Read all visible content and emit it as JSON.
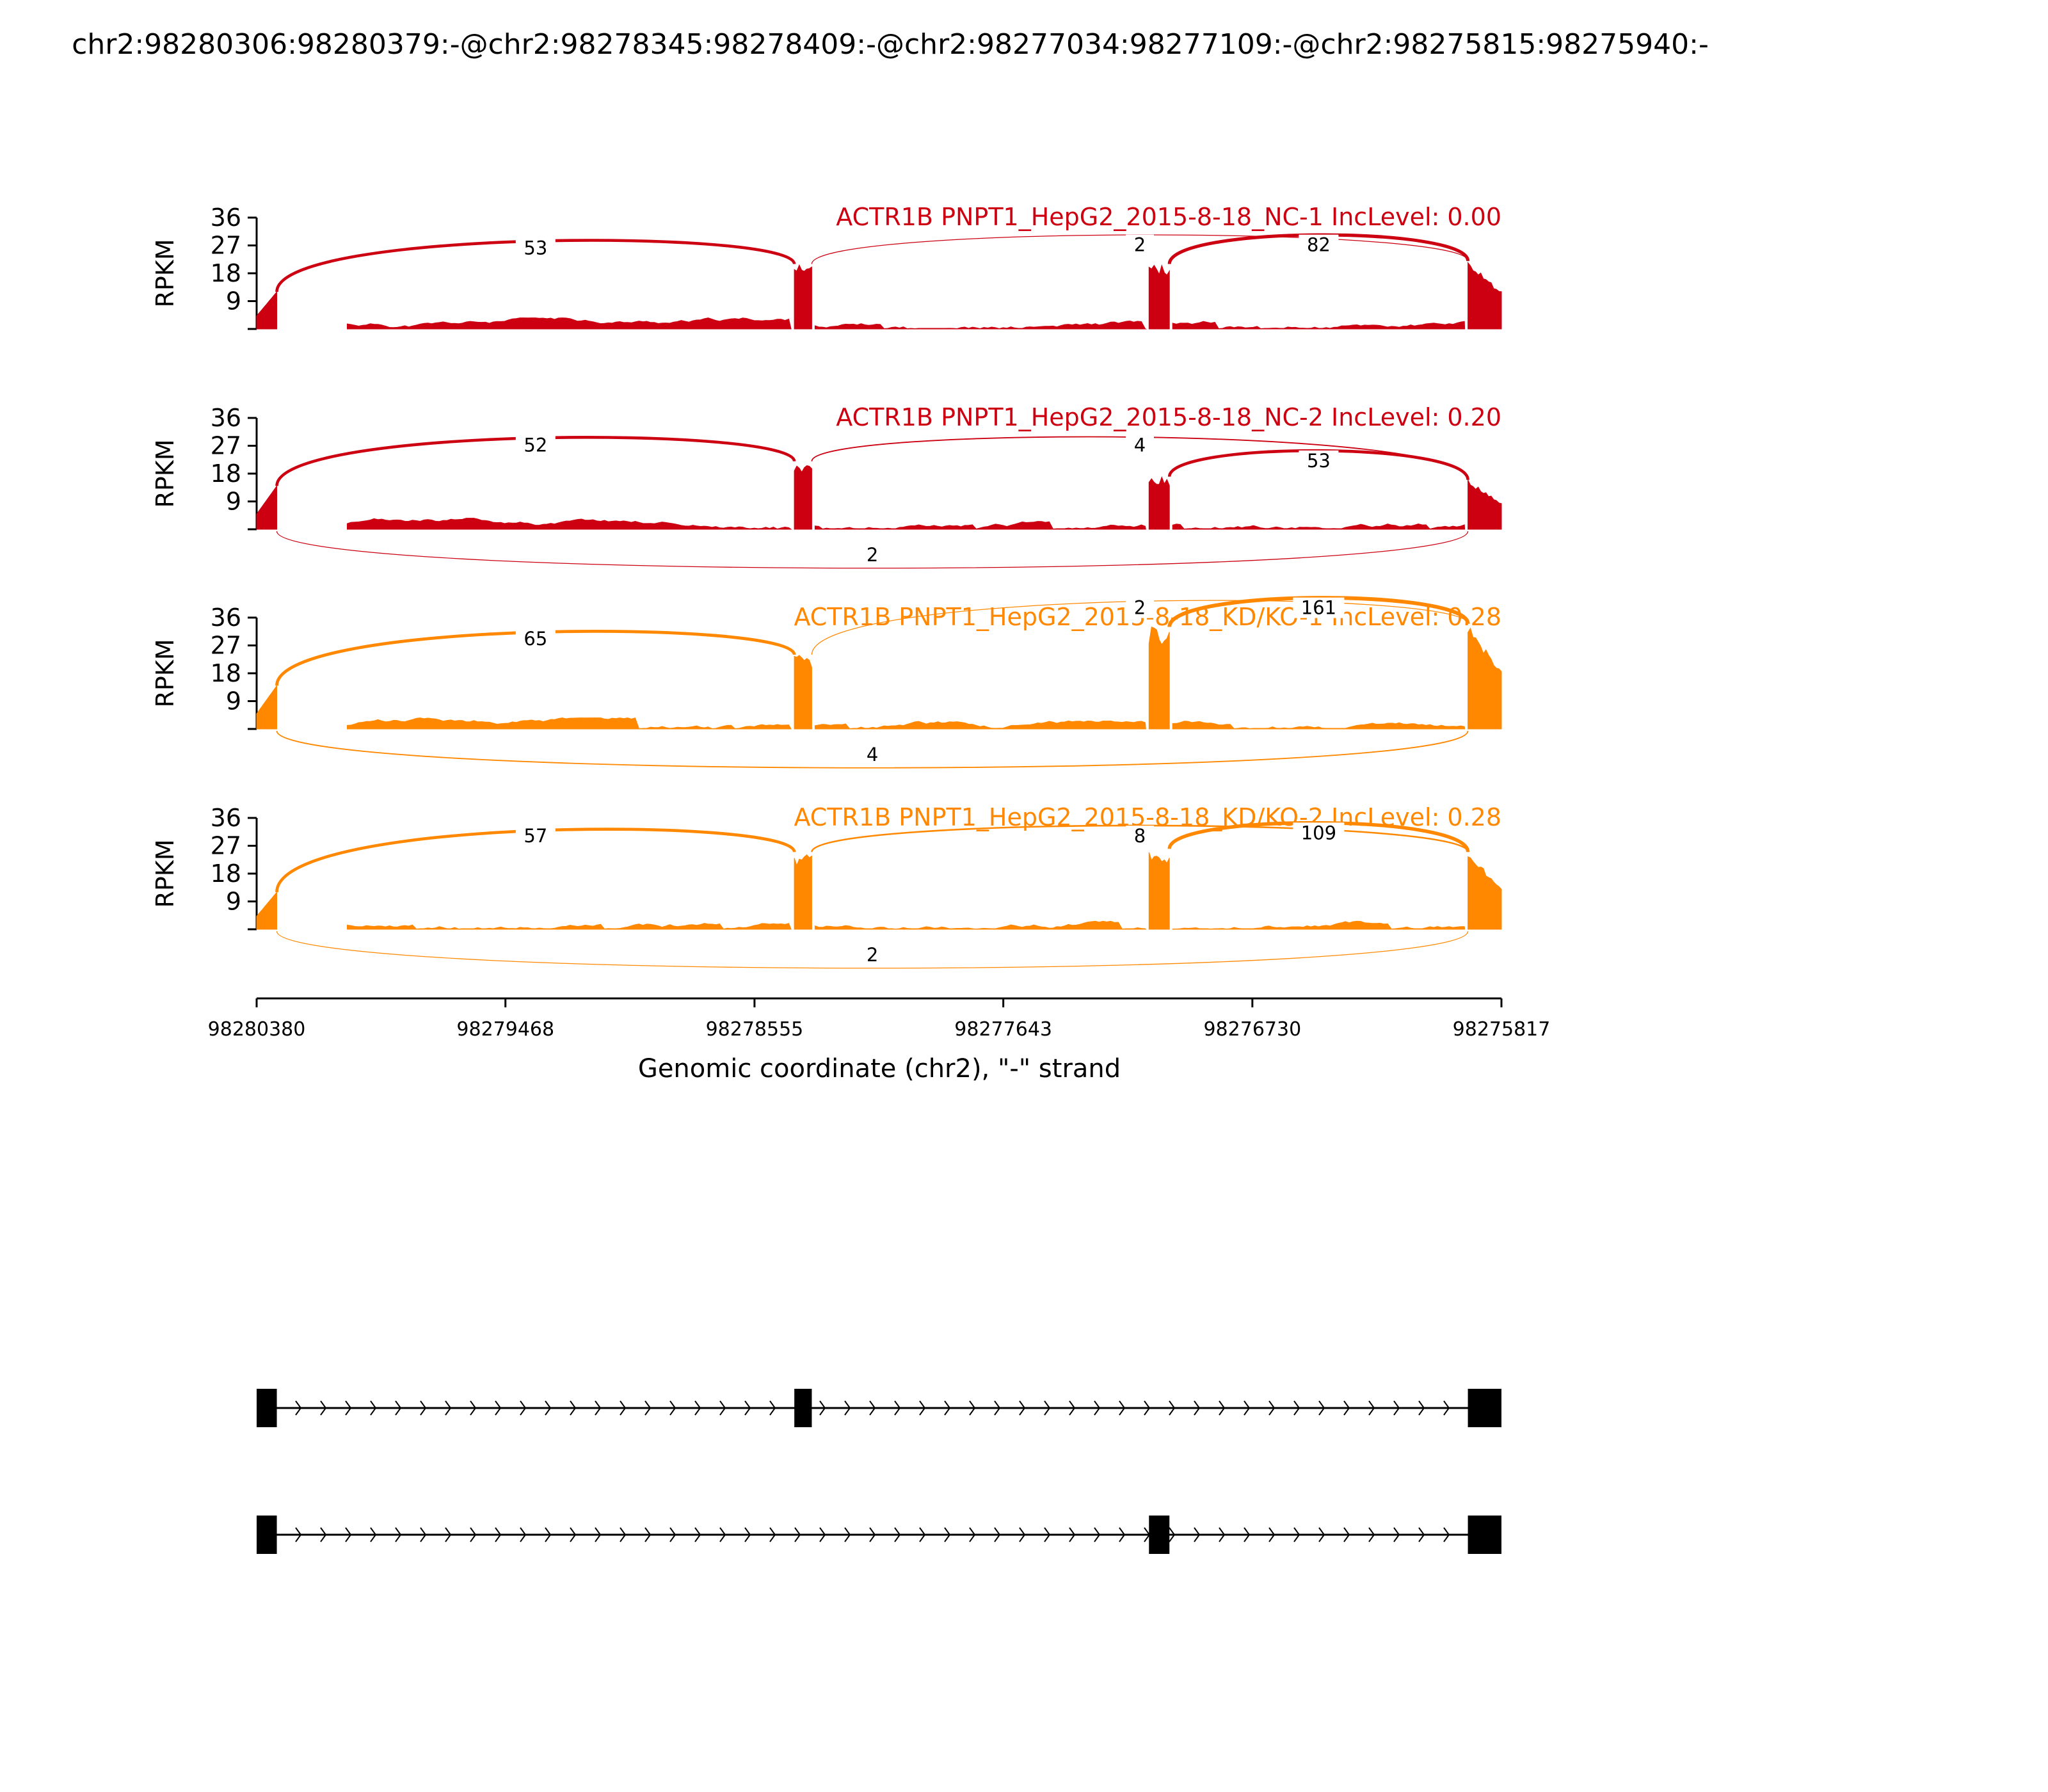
{
  "chart_data": {
    "type": "area",
    "title": "chr2:98280306:98280379:-@chr2:98278345:98278409:-@chr2:98277034:98277109:-@chr2:98275815:98275940:-",
    "xlabel": "Genomic coordinate (chr2), \"-\" strand",
    "ylabel": "RPKM",
    "x_range": [
      98280380,
      98275817
    ],
    "x_ticks": [
      "98280380",
      "98279468",
      "98278555",
      "98277643",
      "98276730",
      "98275817"
    ],
    "y_range": [
      0,
      36
    ],
    "y_ticks": [
      "36",
      "27",
      "18",
      "9"
    ],
    "exons": {
      "e1": [
        98280380,
        98280306
      ],
      "e2": [
        98278409,
        98278345
      ],
      "e3": [
        98277109,
        98277034
      ],
      "e4": [
        98275940,
        98275817
      ]
    },
    "tracks": [
      {
        "label": "ACTR1B PNPT1_HepG2_2015-8-18_NC-1 IncLevel: 0.00",
        "color": "#cc0011",
        "peaks": {
          "e1": 12,
          "e2": 21,
          "e3": 21,
          "e4": 22
        },
        "junctions": [
          {
            "from": "e1",
            "to": "e2",
            "count": "53",
            "side": "above"
          },
          {
            "from": "e2",
            "to": "e4",
            "count": "2",
            "side": "above"
          },
          {
            "from": "e3",
            "to": "e4",
            "count": "82",
            "side": "above"
          }
        ]
      },
      {
        "label": "ACTR1B PNPT1_HepG2_2015-8-18_NC-2 IncLevel: 0.20",
        "color": "#cc0011",
        "peaks": {
          "e1": 14,
          "e2": 22,
          "e3": 17,
          "e4": 16
        },
        "junctions": [
          {
            "from": "e1",
            "to": "e2",
            "count": "52",
            "side": "above"
          },
          {
            "from": "e2",
            "to": "e4",
            "count": "4",
            "side": "above"
          },
          {
            "from": "e3",
            "to": "e4",
            "count": "53",
            "side": "above"
          },
          {
            "from": "e1",
            "to": "e4",
            "count": "2",
            "side": "below"
          }
        ]
      },
      {
        "label": "ACTR1B PNPT1_HepG2_2015-8-18_KD/KO-1 IncLevel: 0.28",
        "color": "#ff8800",
        "peaks": {
          "e1": 14,
          "e2": 24,
          "e3": 33,
          "e4": 34
        },
        "junctions": [
          {
            "from": "e1",
            "to": "e2",
            "count": "65",
            "side": "above"
          },
          {
            "from": "e2",
            "to": "e4",
            "count": "2",
            "side": "above"
          },
          {
            "from": "e3",
            "to": "e4",
            "count": "161",
            "side": "above"
          },
          {
            "from": "e1",
            "to": "e4",
            "count": "4",
            "side": "below"
          }
        ]
      },
      {
        "label": "ACTR1B PNPT1_HepG2_2015-8-18_KD/KO-2 IncLevel: 0.28",
        "color": "#ff8800",
        "peaks": {
          "e1": 12,
          "e2": 25,
          "e3": 26,
          "e4": 25
        },
        "junctions": [
          {
            "from": "e1",
            "to": "e2",
            "count": "57",
            "side": "above"
          },
          {
            "from": "e2",
            "to": "e4",
            "count": "8",
            "side": "above"
          },
          {
            "from": "e3",
            "to": "e4",
            "count": "109",
            "side": "above"
          },
          {
            "from": "e1",
            "to": "e4",
            "count": "2",
            "side": "below"
          }
        ]
      }
    ],
    "isoforms": [
      {
        "exons": [
          "e1",
          "e2",
          "e4"
        ]
      },
      {
        "exons": [
          "e1",
          "e3",
          "e4"
        ]
      }
    ]
  }
}
